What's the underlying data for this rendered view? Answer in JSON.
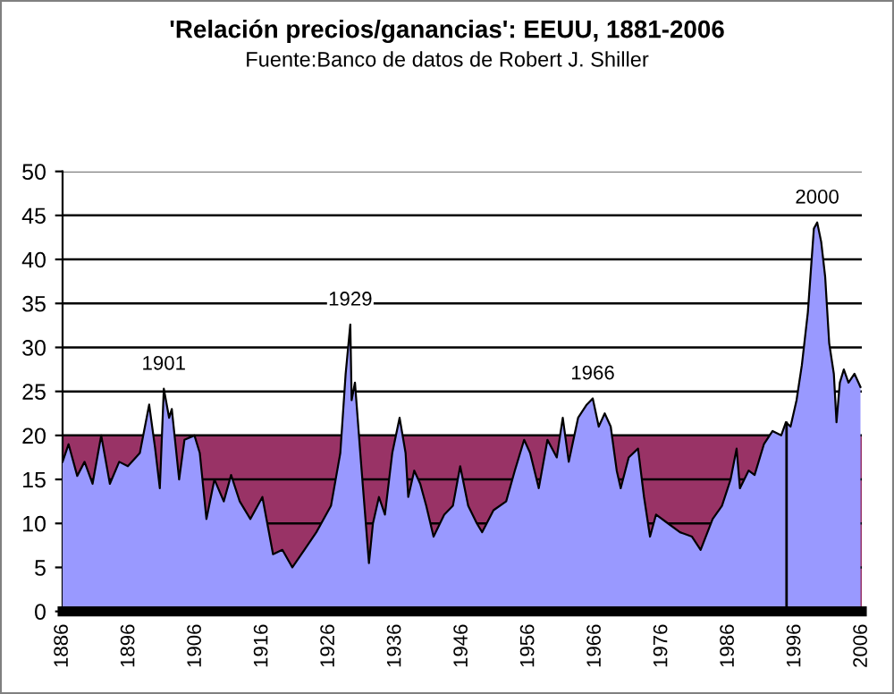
{
  "chart_data": {
    "type": "area",
    "title": "'Relación precios/ganancias': EEUU, 1881-2006",
    "subtitle": "Fuente:Banco de datos de Robert J. Shiller",
    "x": [
      1886,
      1886.9,
      1888.2,
      1889.3,
      1890.5,
      1891.8,
      1893.1,
      1894.5,
      1895.8,
      1897.6,
      1899,
      1899.9,
      1900.6,
      1901.2,
      1902,
      1902.4,
      1903.5,
      1904.3,
      1905.8,
      1906.6,
      1907.6,
      1908.8,
      1910.2,
      1911.3,
      1912.6,
      1914.2,
      1916,
      1917.6,
      1919,
      1920.5,
      1922.3,
      1924.1,
      1926.3,
      1927.7,
      1928.5,
      1929.2,
      1929.4,
      1929.9,
      1930.8,
      1932,
      1932.6,
      1933.5,
      1934.4,
      1935.5,
      1936.6,
      1937.5,
      1937.9,
      1938.8,
      1939.7,
      1940.6,
      1941.7,
      1943.3,
      1944.6,
      1945.7,
      1946.9,
      1948.2,
      1949,
      1950.7,
      1952.6,
      1953.9,
      1955.3,
      1956.2,
      1957.5,
      1958.8,
      1960.2,
      1961.1,
      1962,
      1963.4,
      1964.7,
      1965.6,
      1966.5,
      1967.4,
      1968.3,
      1969.2,
      1969.8,
      1971,
      1972.4,
      1973.3,
      1974.2,
      1975.1,
      1976.9,
      1978.7,
      1980.5,
      1981.8,
      1983.6,
      1985,
      1986.3,
      1987.2,
      1987.7,
      1989,
      1989.9,
      1991.3,
      1992.6,
      1993.9,
      1994.6,
      1995.3,
      1996.2,
      1997,
      1997.9,
      1998.8,
      1999.3,
      1999.9,
      2000.5,
      2001.1,
      2001.8,
      2002.2,
      2002.7,
      2003.3,
      2004,
      2004.9,
      2005.8
    ],
    "series": [
      {
        "color": "#9999ff",
        "values": [
          17,
          19,
          15.4,
          17,
          14.5,
          20,
          14.5,
          17,
          16.5,
          18,
          23.5,
          18.5,
          14,
          25.3,
          22,
          23,
          15,
          19.5,
          20,
          18,
          10.5,
          15,
          12.5,
          15.5,
          12.5,
          10.5,
          13,
          6.5,
          7,
          5,
          7,
          9,
          12,
          18,
          27,
          32.6,
          24,
          26,
          17,
          5.5,
          10,
          13,
          11,
          18,
          22,
          18,
          13,
          16,
          14.5,
          12,
          8.5,
          11,
          12,
          16.5,
          12,
          10,
          9,
          11.5,
          12.5,
          16,
          19.5,
          18,
          14,
          19.5,
          17.5,
          22,
          17,
          22,
          23.5,
          24.2,
          21,
          22.5,
          21,
          16,
          14,
          17.5,
          18.5,
          13,
          8.5,
          11,
          10,
          9,
          8.5,
          7,
          10.5,
          12,
          15,
          18.5,
          14,
          16,
          15.5,
          19,
          20.5,
          20,
          21.5,
          21,
          24,
          28,
          34,
          43.5,
          44.2,
          42,
          38,
          30.5,
          27,
          21.5,
          26,
          27.5,
          26,
          27,
          25.5
        ]
      }
    ],
    "bands": [
      {
        "axis": "y",
        "from": 0,
        "to": 20,
        "color": "#993366"
      }
    ],
    "ref_lines": [
      {
        "axis": "x",
        "value": 1994.7,
        "color": "#000000"
      }
    ],
    "annotations": [
      {
        "text": "1901",
        "x": 1901.2,
        "y": 25.3
      },
      {
        "text": "1929",
        "x": 1929.2,
        "y": 32.6
      },
      {
        "text": "1966",
        "x": 1965.6,
        "y": 24.2
      },
      {
        "text": "2000",
        "x": 1999.3,
        "y": 44.2
      }
    ],
    "xlim": [
      1886,
      2006
    ],
    "xticks": [
      1886,
      1896,
      1906,
      1916,
      1926,
      1936,
      1946,
      1956,
      1966,
      1976,
      1986,
      1996,
      2006
    ],
    "ylim": [
      0,
      50
    ],
    "yticks": [
      0,
      5,
      10,
      15,
      20,
      25,
      30,
      35,
      40,
      45,
      50
    ],
    "grid": "y",
    "legend": false
  }
}
